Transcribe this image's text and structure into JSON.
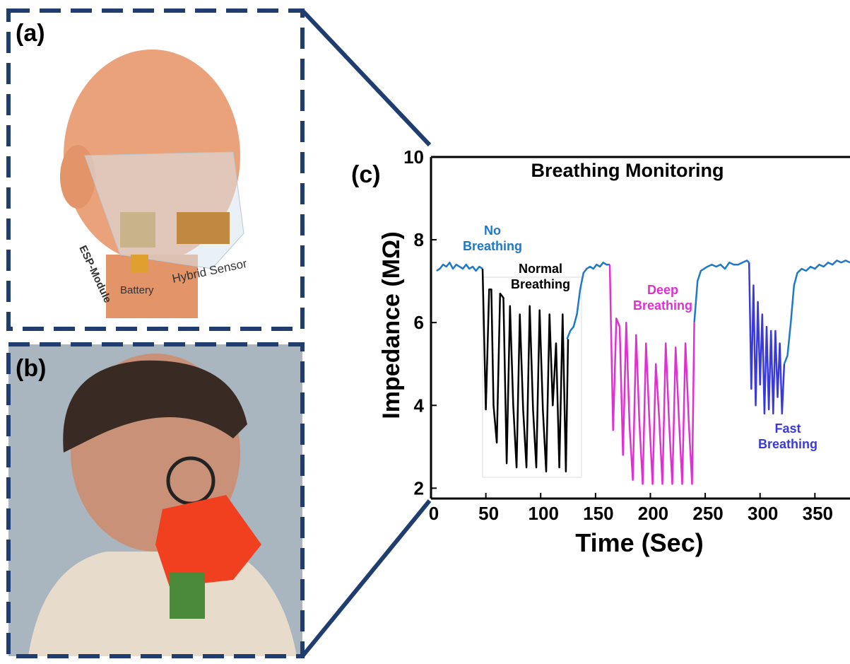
{
  "panels": {
    "a": {
      "label": "(a)",
      "annotations": [
        "ESP-Module",
        "Battery",
        "Hybrid Sensor"
      ]
    },
    "b": {
      "label": "(b)"
    },
    "c": {
      "label": "(c)"
    }
  },
  "chart_data": {
    "type": "line",
    "title": "Breathing Monitoring",
    "x_label": "Time (Sec)",
    "y_label": "Impedance (MΩ)",
    "xlim": [
      0,
      382
    ],
    "ylim": [
      1.75,
      10
    ],
    "xticks": [
      0,
      50,
      100,
      150,
      200,
      250,
      300,
      350
    ],
    "yticks": [
      2,
      4,
      6,
      8,
      10
    ],
    "series": [
      {
        "name": "No Breathing",
        "color": "#1f78c8",
        "x": [
          5,
          8,
          11,
          14,
          17,
          20,
          23,
          26,
          29,
          32,
          35,
          38,
          41,
          44,
          47,
          null,
          124,
          127,
          130,
          133,
          136,
          139,
          142,
          145,
          148,
          151,
          154,
          157,
          160,
          163,
          null,
          240,
          243,
          246,
          249,
          252,
          256,
          260,
          264,
          268,
          272,
          276,
          280,
          284,
          288,
          290,
          null,
          322,
          325,
          328,
          331,
          334,
          338,
          342,
          346,
          350,
          354,
          358,
          362,
          366,
          370,
          374,
          378,
          382
        ],
        "values": [
          7.25,
          7.3,
          7.4,
          7.35,
          7.45,
          7.3,
          7.4,
          7.35,
          7.3,
          7.4,
          7.3,
          7.35,
          7.25,
          7.35,
          7.3,
          null,
          5.6,
          5.8,
          5.9,
          6.2,
          6.8,
          7.2,
          7.3,
          7.35,
          7.3,
          7.4,
          7.35,
          7.45,
          7.4,
          7.4,
          null,
          6.0,
          7.0,
          7.25,
          7.3,
          7.35,
          7.4,
          7.35,
          7.4,
          7.3,
          7.45,
          7.4,
          7.4,
          7.45,
          7.5,
          7.45,
          null,
          5.0,
          5.2,
          6.0,
          6.9,
          7.2,
          7.3,
          7.25,
          7.35,
          7.3,
          7.4,
          7.35,
          7.45,
          7.4,
          7.5,
          7.45,
          7.5,
          7.45
        ]
      },
      {
        "name": "Normal Breathing",
        "color": "#000000",
        "x": [
          47,
          50,
          53,
          55,
          57,
          60,
          63,
          66,
          69,
          72,
          75,
          78,
          81,
          84,
          87,
          90,
          93,
          96,
          99,
          102,
          105,
          108,
          111,
          114,
          117,
          120,
          123,
          125
        ],
        "values": [
          7.3,
          3.9,
          6.8,
          6.8,
          4.0,
          3.1,
          6.7,
          6.6,
          2.6,
          6.4,
          4.0,
          2.5,
          6.2,
          3.9,
          2.5,
          6.4,
          3.9,
          2.5,
          6.3,
          3.9,
          2.4,
          6.2,
          4.0,
          5.5,
          2.5,
          6.2,
          2.4,
          5.6
        ]
      },
      {
        "name": "Deep Breathing",
        "color": "#e030d0",
        "x": [
          163,
          166,
          169,
          172,
          175,
          178,
          181,
          184,
          187,
          190,
          193,
          196,
          199,
          202,
          205,
          208,
          211,
          214,
          217,
          220,
          223,
          226,
          229,
          232,
          235,
          238,
          240
        ],
        "values": [
          7.4,
          3.4,
          6.1,
          5.9,
          2.8,
          6.0,
          3.5,
          2.2,
          5.7,
          3.6,
          2.1,
          5.5,
          3.7,
          2.1,
          5.0,
          3.7,
          2.1,
          5.5,
          3.6,
          2.1,
          5.4,
          3.7,
          2.1,
          5.5,
          3.6,
          2.1,
          6.0
        ]
      },
      {
        "name": "Fast Breathing",
        "color": "#3a3adc",
        "x": [
          290,
          292,
          294,
          296,
          298,
          300,
          302,
          304,
          306,
          308,
          310,
          312,
          314,
          316,
          318,
          320,
          322
        ],
        "values": [
          7.45,
          4.4,
          6.9,
          4.0,
          6.5,
          4.5,
          6.2,
          3.8,
          5.9,
          3.9,
          5.8,
          3.8,
          5.8,
          4.2,
          5.5,
          3.8,
          5.0
        ]
      }
    ]
  }
}
